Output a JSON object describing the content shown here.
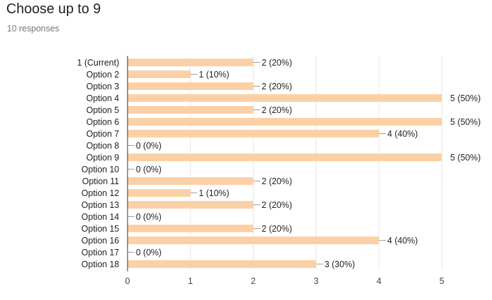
{
  "header": {
    "title": "Choose up to 9",
    "subtitle": "10 responses"
  },
  "colors": {
    "bar": "#fcd0a6",
    "axis": "#333333",
    "grid": "#e6e6e6",
    "leader": "#9e9e9e"
  },
  "chart_data": {
    "type": "bar",
    "orientation": "horizontal",
    "categories": [
      "1 (Current)",
      "Option 2",
      "Option 3",
      "Option 4",
      "Option 5",
      "Option 6",
      "Option 7",
      "Option 8",
      "Option 9",
      "Option 10",
      "Option 11",
      "Option 12",
      "Option 13",
      "Option 14",
      "Option 15",
      "Option 16",
      "Option 17",
      "Option 18"
    ],
    "values": [
      2,
      1,
      2,
      5,
      2,
      5,
      4,
      0,
      5,
      0,
      2,
      1,
      2,
      0,
      2,
      4,
      0,
      3
    ],
    "data_labels": [
      "2 (20%)",
      "1 (10%)",
      "2 (20%)",
      "5 (50%)",
      "2 (20%)",
      "5 (50%)",
      "4 (40%)",
      "0 (0%)",
      "5 (50%)",
      "0 (0%)",
      "2 (20%)",
      "1 (10%)",
      "2 (20%)",
      "0 (0%)",
      "2 (20%)",
      "4 (40%)",
      "0 (0%)",
      "3 (30%)"
    ],
    "xlim": [
      0,
      5
    ],
    "xticks": [
      0,
      1,
      2,
      3,
      4,
      5
    ],
    "grid": true
  }
}
